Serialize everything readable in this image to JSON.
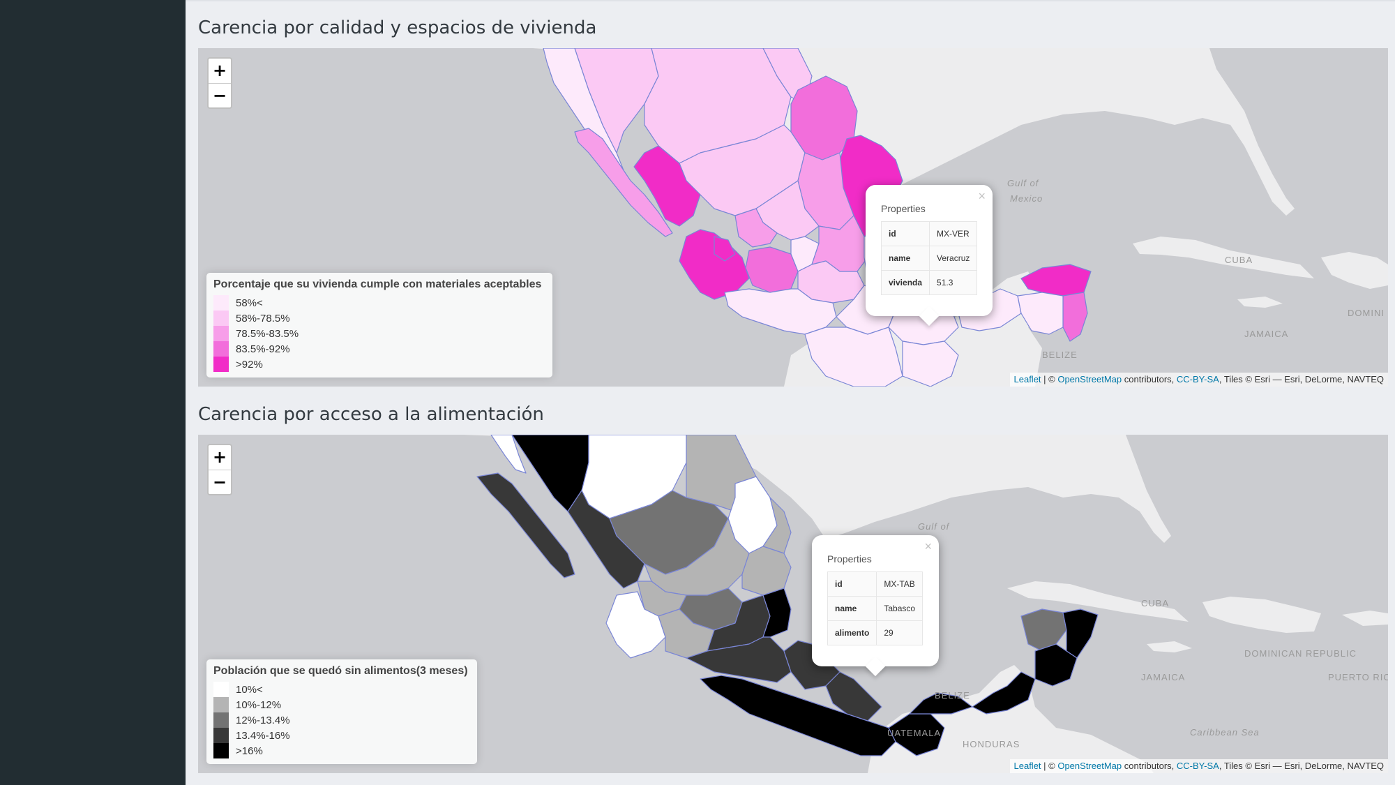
{
  "sections": [
    {
      "title": "Carencia por calidad y espacios de vivienda",
      "zoom": {
        "in": "+",
        "out": "−"
      },
      "legend": {
        "title": "Porcentaje que su vivienda cumple con materiales aceptables",
        "items": [
          {
            "label": "58%<",
            "color": "#fdeafb"
          },
          {
            "label": "58%-78.5%",
            "color": "#fbc9f4"
          },
          {
            "label": "78.5%-83.5%",
            "color": "#f79ee9"
          },
          {
            "label": "83.5%-92%",
            "color": "#f26edb"
          },
          {
            "label": ">92%",
            "color": "#f12cc7"
          }
        ]
      },
      "popup": {
        "title": "Properties",
        "rows": [
          {
            "key": "id",
            "value": "MX-VER"
          },
          {
            "key": "name",
            "value": "Veracruz"
          },
          {
            "key": "vivienda",
            "value": "51.3"
          }
        ]
      },
      "place_labels": [
        "Gulf of",
        "Mexico",
        "CUBA",
        "JAMAICA",
        "DOMINI",
        "BELIZE"
      ]
    },
    {
      "title": "Carencia por acceso a la alimentación",
      "zoom": {
        "in": "+",
        "out": "−"
      },
      "legend": {
        "title": "Población que se quedó sin alimentos(3 meses)",
        "items": [
          {
            "label": "10%<",
            "color": "#ffffff"
          },
          {
            "label": "10%-12%",
            "color": "#b4b4b4"
          },
          {
            "label": "12%-13.4%",
            "color": "#737373"
          },
          {
            "label": "13.4%-16%",
            "color": "#383838"
          },
          {
            "label": ">16%",
            "color": "#000000"
          }
        ]
      },
      "popup": {
        "title": "Properties",
        "rows": [
          {
            "key": "id",
            "value": "MX-TAB"
          },
          {
            "key": "name",
            "value": "Tabasco"
          },
          {
            "key": "alimento",
            "value": "29"
          }
        ]
      },
      "place_labels": [
        "Gulf of",
        "CUBA",
        "DOMINICAN REPUBLIC",
        "JAMAICA",
        "PUERTO RICO",
        "BELIZE",
        "UATEMALA",
        "HONDURAS",
        "Caribbean Sea"
      ]
    }
  ],
  "attribution": {
    "leaflet": "Leaflet",
    "sep": " | © ",
    "osm": "OpenStreetMap",
    "contrib": " contributors, ",
    "license": "CC-BY-SA",
    "tiles": ", Tiles © Esri — Esri, DeLorme, NAVTEQ"
  }
}
